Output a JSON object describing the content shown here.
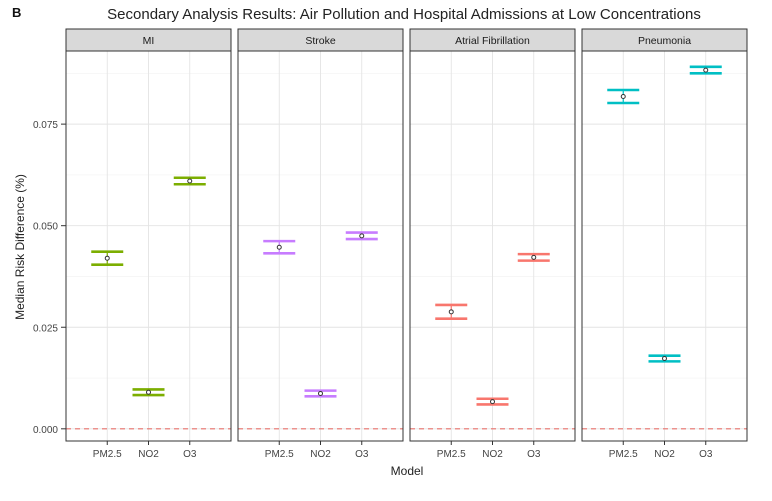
{
  "chart_data": {
    "type": "errorbar",
    "panel_tag": "B",
    "title": "Secondary Analysis Results: Air Pollution and Hospital Admissions at Low Concentrations",
    "xlabel": "Model",
    "ylabel": "Median Risk Difference (%)",
    "ylim": [
      -0.003,
      0.093
    ],
    "yticks": [
      0.0,
      0.025,
      0.05,
      0.075
    ],
    "ytick_labels": [
      "0.000",
      "0.025",
      "0.050",
      "0.075"
    ],
    "categories": [
      "PM2.5",
      "NO2",
      "O3"
    ],
    "reference_line": 0,
    "panels": [
      {
        "name": "MI",
        "color": "#7cae00",
        "points": [
          {
            "model": "PM2.5",
            "median": 0.042,
            "lower": 0.0404,
            "upper": 0.0436
          },
          {
            "model": "NO2",
            "median": 0.009,
            "lower": 0.0083,
            "upper": 0.0097
          },
          {
            "model": "O3",
            "median": 0.061,
            "lower": 0.0602,
            "upper": 0.0618
          }
        ]
      },
      {
        "name": "Stroke",
        "color": "#c77cff",
        "points": [
          {
            "model": "PM2.5",
            "median": 0.0447,
            "lower": 0.0432,
            "upper": 0.0462
          },
          {
            "model": "NO2",
            "median": 0.0087,
            "lower": 0.008,
            "upper": 0.0094
          },
          {
            "model": "O3",
            "median": 0.0475,
            "lower": 0.0467,
            "upper": 0.0483
          }
        ]
      },
      {
        "name": "Atrial Fibrillation",
        "color": "#f8766d",
        "points": [
          {
            "model": "PM2.5",
            "median": 0.0288,
            "lower": 0.0271,
            "upper": 0.0305
          },
          {
            "model": "NO2",
            "median": 0.0067,
            "lower": 0.006,
            "upper": 0.0074
          },
          {
            "model": "O3",
            "median": 0.0422,
            "lower": 0.0414,
            "upper": 0.043
          }
        ]
      },
      {
        "name": "Pneumonia",
        "color": "#00bfc4",
        "points": [
          {
            "model": "PM2.5",
            "median": 0.0818,
            "lower": 0.0802,
            "upper": 0.0834
          },
          {
            "model": "NO2",
            "median": 0.0173,
            "lower": 0.0166,
            "upper": 0.018
          },
          {
            "model": "O3",
            "median": 0.0883,
            "lower": 0.0875,
            "upper": 0.0891
          }
        ]
      }
    ]
  }
}
